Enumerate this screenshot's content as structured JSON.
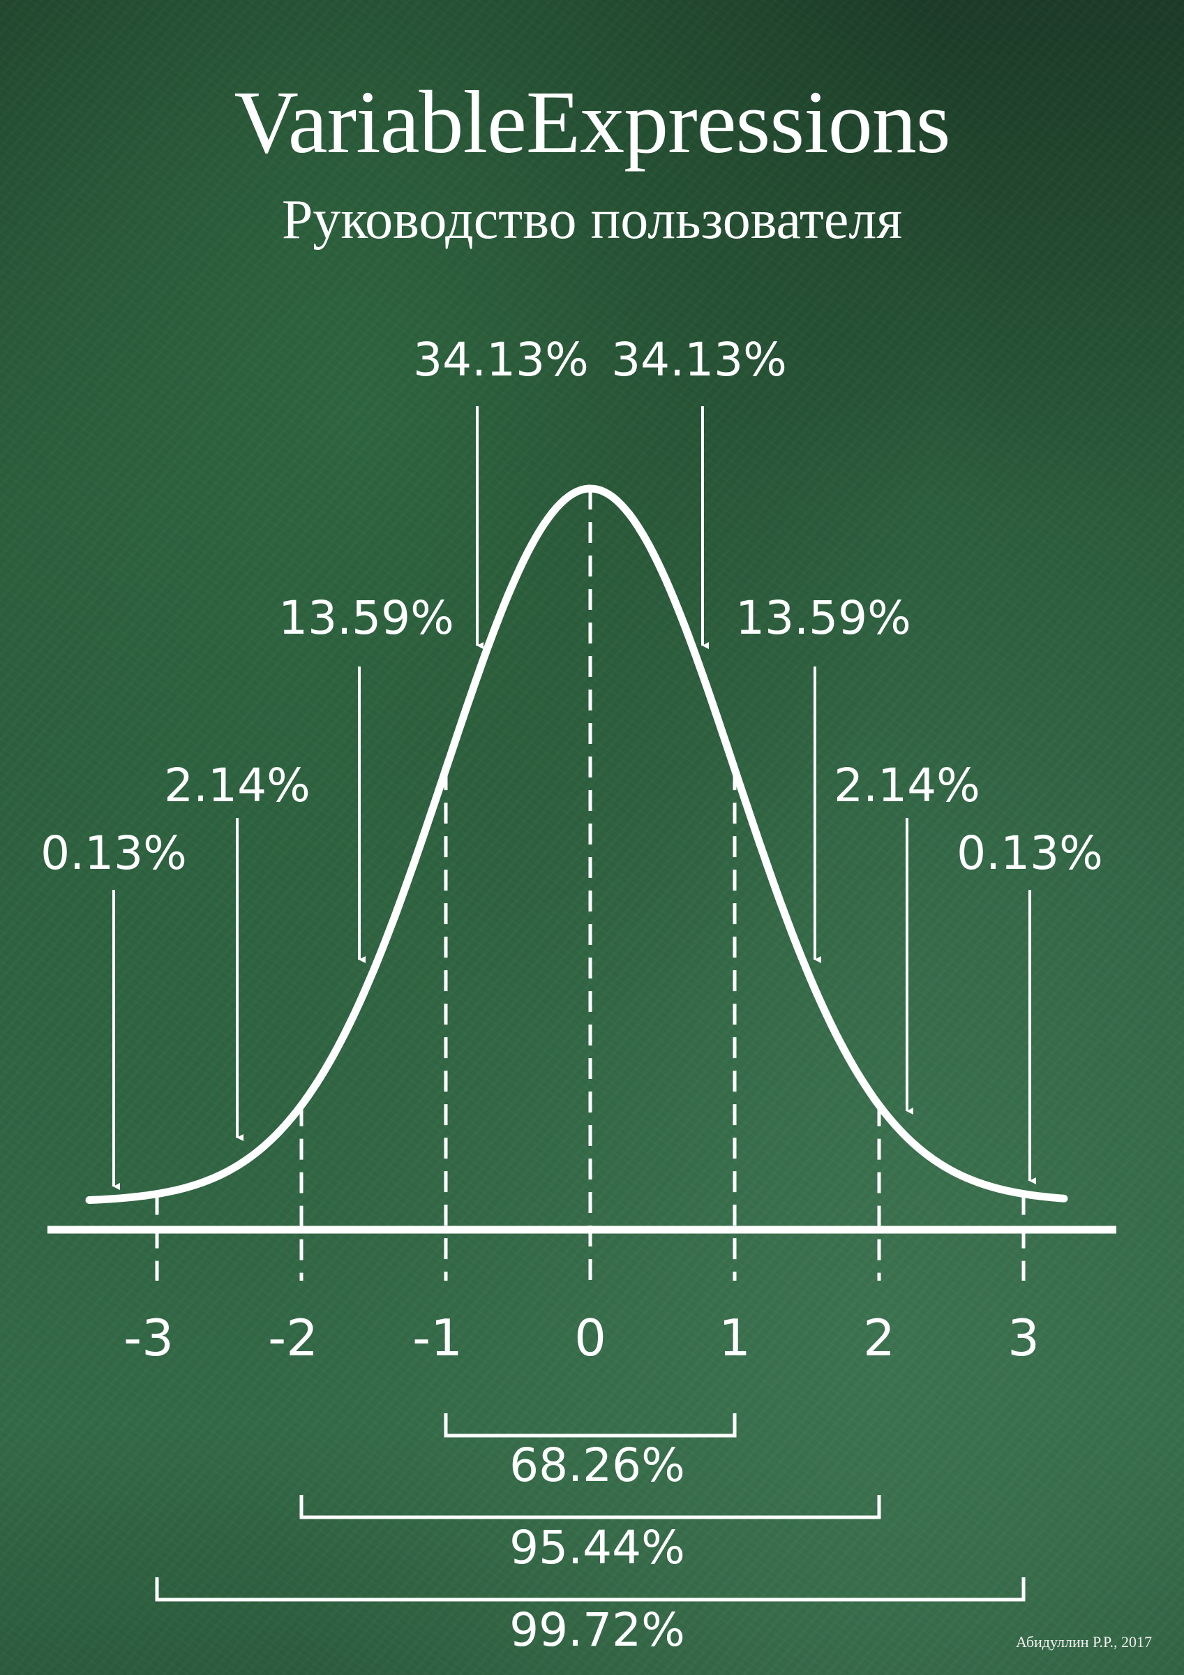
{
  "header": {
    "title": "VariableExpressions",
    "subtitle": "Руководство пользователя"
  },
  "footer": {
    "credit": "Абидуллин Р.Р., 2017"
  },
  "colors": {
    "background": "#2c5c3d",
    "chalk": "#ffffff"
  },
  "chart_data": {
    "type": "line",
    "title": "",
    "xlabel": "",
    "ylabel": "",
    "distribution": "normal",
    "mean": 0,
    "sd": 1,
    "xlim": [
      -3.5,
      3.5
    ],
    "ticks": [
      {
        "value": -3,
        "label": "-3"
      },
      {
        "value": -2,
        "label": "-2"
      },
      {
        "value": -1,
        "label": "-1"
      },
      {
        "value": 0,
        "label": "0"
      },
      {
        "value": 1,
        "label": "1"
      },
      {
        "value": 2,
        "label": "2"
      },
      {
        "value": 3,
        "label": "3"
      }
    ],
    "segments": [
      {
        "label": "0.13%",
        "from": -4,
        "to": -3,
        "percent": 0.13
      },
      {
        "label": "2.14%",
        "from": -3,
        "to": -2,
        "percent": 2.14
      },
      {
        "label": "13.59%",
        "from": -2,
        "to": -1,
        "percent": 13.59
      },
      {
        "label": "34.13%",
        "from": -1,
        "to": 0,
        "percent": 34.13
      },
      {
        "label": "34.13%",
        "from": 0,
        "to": 1,
        "percent": 34.13
      },
      {
        "label": "13.59%",
        "from": 1,
        "to": 2,
        "percent": 13.59
      },
      {
        "label": "2.14%",
        "from": 2,
        "to": 3,
        "percent": 2.14
      },
      {
        "label": "0.13%",
        "from": 3,
        "to": 4,
        "percent": 0.13
      }
    ],
    "ranges": [
      {
        "label": "68.26%",
        "from": -1,
        "to": 1,
        "percent": 68.26
      },
      {
        "label": "95.44%",
        "from": -2,
        "to": 2,
        "percent": 95.44
      },
      {
        "label": "99.72%",
        "from": -3,
        "to": 3,
        "percent": 99.72
      }
    ],
    "grid": false,
    "legend": "none"
  }
}
